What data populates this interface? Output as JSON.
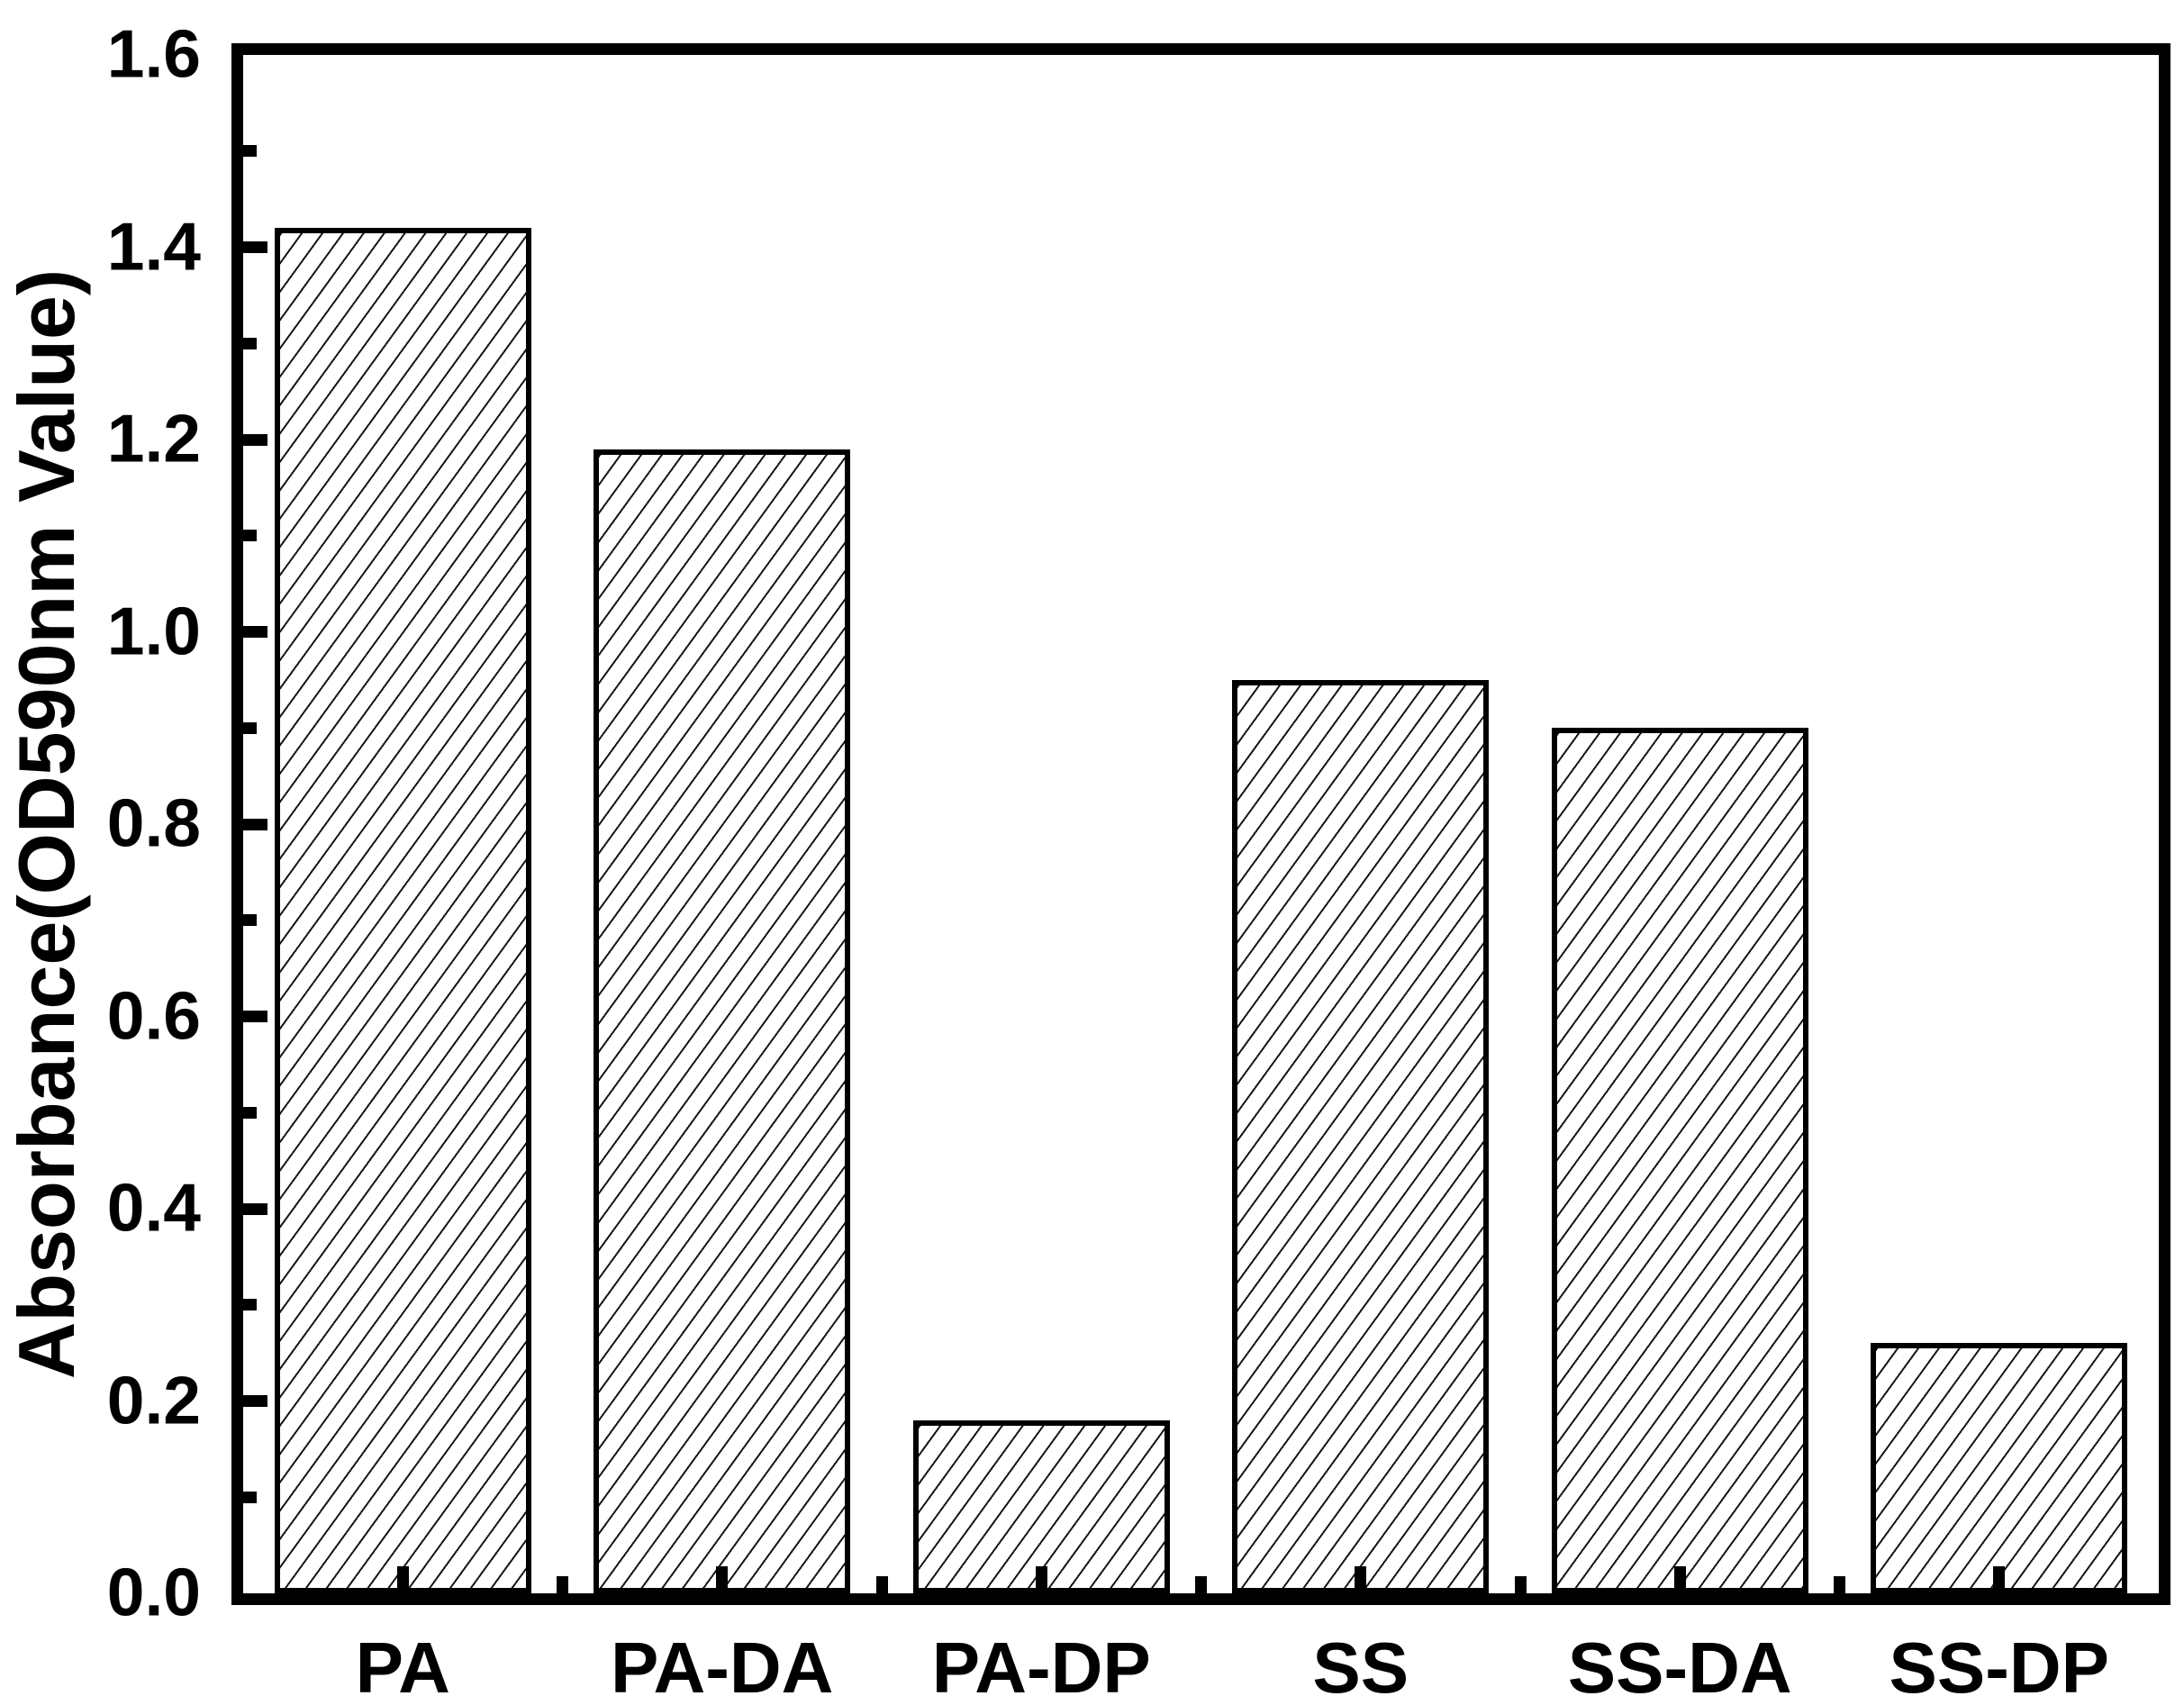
{
  "chart_data": {
    "type": "bar",
    "title": "",
    "categories": [
      "PA",
      "PA-DA",
      "PA-DP",
      "SS",
      "SS-DA",
      "SS-DP"
    ],
    "values": [
      1.42,
      1.19,
      0.18,
      0.95,
      0.9,
      0.26
    ],
    "xlabel": "",
    "ylabel": "Absorbance(OD590nm Value)",
    "ylim": [
      0.0,
      1.6
    ],
    "ytick_major_step": 0.2,
    "ytick_minor_step": 0.1,
    "ytick_labels": [
      "0.0",
      "0.2",
      "0.4",
      "0.6",
      "0.8",
      "1.0",
      "1.2",
      "1.4",
      "1.6"
    ],
    "grid": false,
    "legend": false,
    "bar_style": {
      "fill": "#ffffff",
      "hatch": "forward-diagonal",
      "edge_color": "#000000"
    },
    "colors": {
      "axis": "#000000",
      "text": "#000000",
      "background": "#ffffff"
    }
  }
}
